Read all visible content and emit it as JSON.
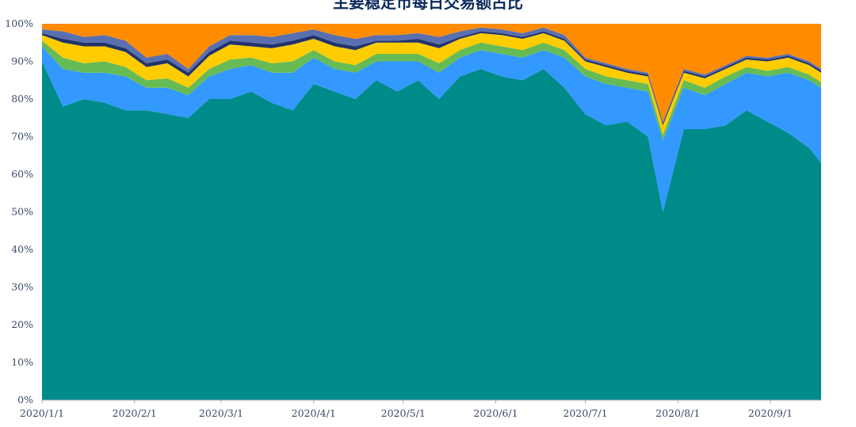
{
  "chart_data": {
    "type": "area",
    "stacked": "percent",
    "title": "主要稳定币每日交易额占比",
    "xlabel": "",
    "ylabel": "",
    "ylim": [
      0,
      100
    ],
    "y_ticks": [
      "0%",
      "10%",
      "20%",
      "30%",
      "40%",
      "50%",
      "60%",
      "70%",
      "80%",
      "90%",
      "100%"
    ],
    "x_range": [
      "2020-01-01",
      "2020-09-18"
    ],
    "x_ticks": [
      {
        "date": "2020-01-01",
        "label": "2020/1/1"
      },
      {
        "date": "2020-02-01",
        "label": "2020/2/1"
      },
      {
        "date": "2020-03-01",
        "label": "2020/3/1"
      },
      {
        "date": "2020-04-01",
        "label": "2020/4/1"
      },
      {
        "date": "2020-05-01",
        "label": "2020/5/1"
      },
      {
        "date": "2020-06-01",
        "label": "2020/6/1"
      },
      {
        "date": "2020-07-01",
        "label": "2020/7/1"
      },
      {
        "date": "2020-08-01",
        "label": "2020/8/1"
      },
      {
        "date": "2020-09-01",
        "label": "2020/9/1"
      }
    ],
    "grid": false,
    "legend": "none",
    "colors": [
      "#008b8b",
      "#3399ff",
      "#66bb55",
      "#ffcc00",
      "#22336a",
      "#5a6fb0",
      "#ff8c00"
    ],
    "x": [
      "2020-01-01",
      "2020-01-08",
      "2020-01-15",
      "2020-01-22",
      "2020-01-29",
      "2020-02-05",
      "2020-02-12",
      "2020-02-19",
      "2020-02-26",
      "2020-03-04",
      "2020-03-11",
      "2020-03-18",
      "2020-03-25",
      "2020-04-01",
      "2020-04-08",
      "2020-04-15",
      "2020-04-22",
      "2020-04-29",
      "2020-05-06",
      "2020-05-13",
      "2020-05-20",
      "2020-05-27",
      "2020-06-03",
      "2020-06-10",
      "2020-06-17",
      "2020-06-24",
      "2020-07-01",
      "2020-07-08",
      "2020-07-15",
      "2020-07-22",
      "2020-07-27",
      "2020-08-03",
      "2020-08-10",
      "2020-08-17",
      "2020-08-24",
      "2020-08-31",
      "2020-09-07",
      "2020-09-14",
      "2020-09-18"
    ],
    "series": [
      {
        "values": [
          90,
          78,
          80,
          79,
          77,
          77,
          76,
          75,
          80,
          80,
          82,
          79,
          77,
          84,
          82,
          80,
          85,
          82,
          85,
          80,
          86,
          88,
          86,
          85,
          88,
          83,
          76,
          73,
          74,
          70,
          50,
          72,
          72,
          73,
          77,
          74,
          71,
          67,
          63
        ]
      },
      {
        "values": [
          4,
          10,
          7,
          8,
          9,
          6,
          7,
          6,
          6,
          8,
          7,
          8,
          10,
          7,
          6,
          7,
          5,
          8,
          5,
          7,
          5,
          5,
          6,
          6,
          5,
          8,
          10,
          11,
          9,
          12,
          19,
          11,
          9,
          11,
          10,
          12,
          16,
          18,
          20
        ]
      },
      {
        "values": [
          1.5,
          3,
          2.5,
          3,
          2.5,
          2,
          2.5,
          2,
          2,
          2.5,
          2,
          2.5,
          3,
          2,
          2,
          2,
          2,
          2,
          2,
          2.5,
          2,
          2,
          2,
          2,
          2,
          2,
          2,
          2,
          2,
          2,
          1.5,
          2,
          2,
          2,
          1.5,
          1.5,
          1.5,
          1.5,
          1.5
        ]
      },
      {
        "values": [
          1.5,
          4,
          4.5,
          4,
          4,
          3.5,
          4,
          3,
          3.5,
          4,
          3,
          4,
          4.5,
          3,
          4,
          4,
          3,
          3,
          3,
          4,
          3,
          2.5,
          3,
          3,
          2.5,
          2.5,
          2,
          2.5,
          2,
          2,
          2.5,
          2,
          2.5,
          2,
          2,
          2.5,
          2.5,
          2.5,
          2.5
        ]
      },
      {
        "values": [
          0.5,
          1,
          1,
          1,
          1,
          1,
          1,
          1,
          1,
          1,
          1,
          1,
          1,
          1,
          1,
          1,
          0.5,
          0.5,
          1,
          1,
          0.5,
          0.5,
          0.5,
          0.5,
          0.5,
          0.5,
          0.5,
          0.5,
          0.5,
          0.5,
          0.5,
          0.5,
          0.5,
          0.5,
          0.5,
          0.5,
          0.5,
          0.5,
          0.5
        ]
      },
      {
        "values": [
          1,
          2,
          1.5,
          2,
          2,
          1.5,
          1.5,
          1,
          1.5,
          1.5,
          2,
          2,
          2,
          1.5,
          2,
          2,
          1.5,
          1.5,
          1.5,
          2,
          1.5,
          1,
          1,
          1,
          1,
          1,
          0.5,
          0.5,
          0.5,
          0.5,
          0.5,
          0.5,
          0.5,
          0.5,
          0.5,
          0.5,
          0.5,
          0.5,
          0.5
        ]
      },
      {
        "values": [
          1.5,
          2,
          3.5,
          3,
          4.5,
          9,
          8,
          12,
          6,
          3,
          3,
          3.5,
          2.5,
          1.5,
          3,
          4,
          3,
          3,
          2.5,
          3.5,
          2,
          1,
          1.5,
          2.5,
          1,
          3,
          9,
          10.5,
          12,
          13,
          26,
          12,
          13.5,
          11,
          8.5,
          9,
          8,
          10,
          12
        ]
      }
    ]
  }
}
